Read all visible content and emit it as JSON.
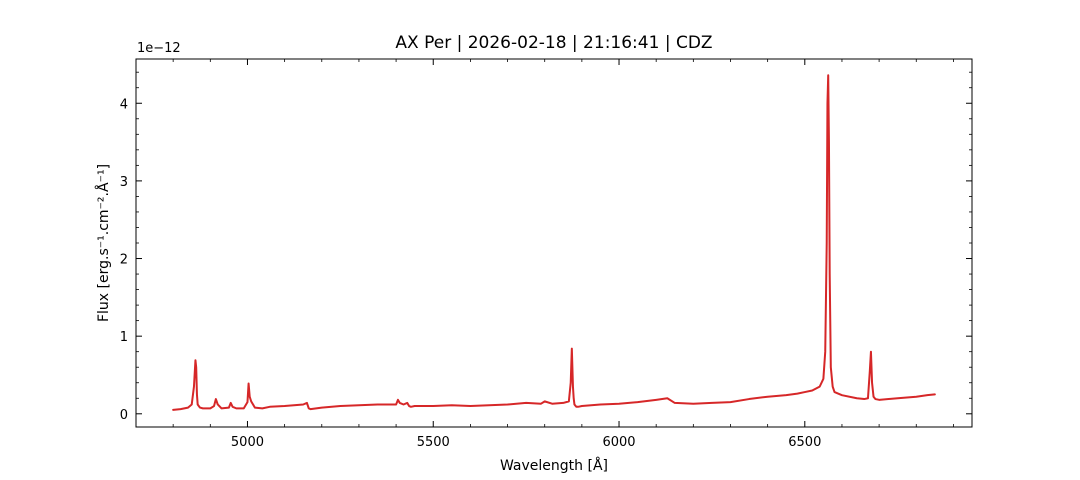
{
  "chart_data": {
    "type": "line",
    "title": "AX Per | 2026-02-18 | 21:16:41 | CDZ",
    "xlabel": "Wavelength [Å]",
    "ylabel": "Flux [erg.s⁻¹.cm⁻².Å⁻¹]",
    "y_offset_label": "1e−12",
    "xlim": [
      4700,
      6950
    ],
    "ylim": [
      -0.17,
      4.57
    ],
    "x_ticks": [
      5000,
      5500,
      6000,
      6500
    ],
    "x_tick_labels": [
      "5000",
      "5500",
      "6000",
      "6500"
    ],
    "y_ticks": [
      0,
      1,
      2,
      3,
      4
    ],
    "y_tick_labels": [
      "0",
      "1",
      "2",
      "3",
      "4"
    ],
    "grid": false,
    "line_color": "#d62728",
    "series": [
      {
        "x": [
          4800,
          4820,
          4840,
          4850,
          4856,
          4860,
          4862,
          4864,
          4866,
          4872,
          4880,
          4900,
          4910,
          4915,
          4920,
          4930,
          4950,
          4955,
          4960,
          4970,
          4990,
          5000,
          5003,
          5006,
          5010,
          5020,
          5040,
          5060,
          5100,
          5150,
          5160,
          5165,
          5170,
          5200,
          5250,
          5300,
          5350,
          5400,
          5405,
          5410,
          5420,
          5430,
          5435,
          5440,
          5450,
          5500,
          5550,
          5600,
          5650,
          5700,
          5750,
          5790,
          5800,
          5820,
          5850,
          5865,
          5870,
          5873,
          5876,
          5878,
          5880,
          5885,
          5890,
          5900,
          5950,
          6000,
          6050,
          6100,
          6130,
          6150,
          6200,
          6250,
          6300,
          6350,
          6400,
          6450,
          6480,
          6500,
          6520,
          6540,
          6550,
          6555,
          6559,
          6561,
          6563,
          6565,
          6567,
          6570,
          6575,
          6580,
          6600,
          6640,
          6660,
          6670,
          6675,
          6678,
          6681,
          6685,
          6690,
          6700,
          6750,
          6800,
          6830,
          6850
        ],
        "y": [
          0.05,
          0.06,
          0.08,
          0.12,
          0.35,
          0.69,
          0.6,
          0.25,
          0.12,
          0.08,
          0.07,
          0.07,
          0.1,
          0.19,
          0.12,
          0.07,
          0.08,
          0.14,
          0.09,
          0.07,
          0.07,
          0.15,
          0.39,
          0.22,
          0.16,
          0.08,
          0.07,
          0.09,
          0.1,
          0.12,
          0.14,
          0.07,
          0.06,
          0.08,
          0.1,
          0.11,
          0.12,
          0.12,
          0.18,
          0.14,
          0.12,
          0.14,
          0.1,
          0.09,
          0.1,
          0.1,
          0.11,
          0.1,
          0.11,
          0.12,
          0.14,
          0.13,
          0.16,
          0.13,
          0.14,
          0.16,
          0.4,
          0.84,
          0.35,
          0.2,
          0.12,
          0.09,
          0.09,
          0.1,
          0.12,
          0.13,
          0.15,
          0.18,
          0.2,
          0.14,
          0.13,
          0.14,
          0.15,
          0.19,
          0.22,
          0.24,
          0.26,
          0.28,
          0.3,
          0.35,
          0.45,
          0.8,
          2.2,
          4.0,
          4.36,
          3.5,
          1.8,
          0.6,
          0.35,
          0.28,
          0.24,
          0.2,
          0.19,
          0.2,
          0.55,
          0.8,
          0.4,
          0.22,
          0.19,
          0.18,
          0.2,
          0.22,
          0.24,
          0.25
        ]
      }
    ]
  }
}
